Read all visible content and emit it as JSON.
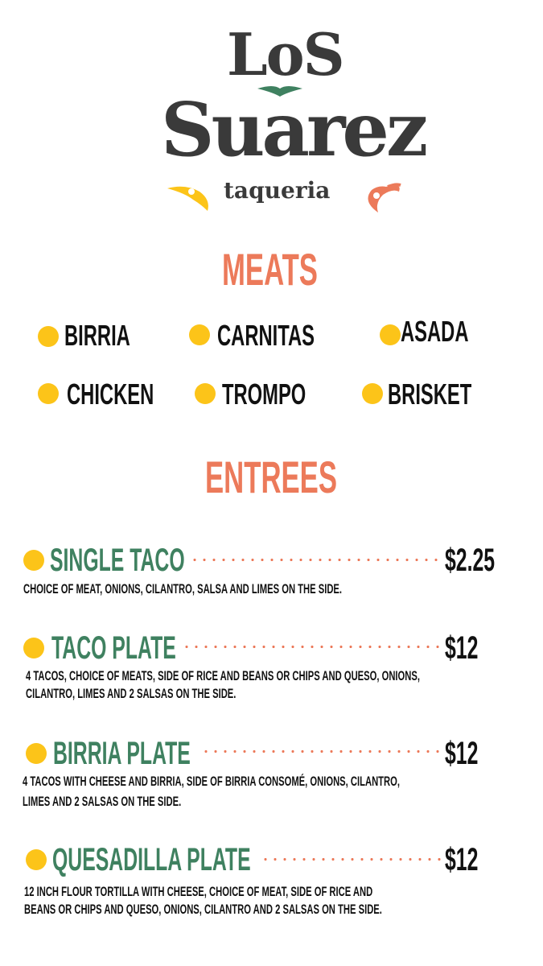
{
  "logo": {
    "line1": "LoS",
    "line2": "Suarez",
    "tagline": "taqueria",
    "colors": {
      "text": "#3a3a3a",
      "green": "#3f8160",
      "yellow": "#fcc419",
      "orange": "#ec7a5a"
    }
  },
  "meats": {
    "heading": "MEATS",
    "items": [
      "BIRRIA",
      "CARNITAS",
      "ASADA",
      "CHICKEN",
      "TROMPO",
      "BRISKET"
    ]
  },
  "entrees": {
    "heading": "ENTREES",
    "items": [
      {
        "name": "SINGLE TACO",
        "price": "$2.25",
        "desc": [
          "CHOICE OF MEAT, ONIONS, CILANTRO, SALSA AND LIMES ON THE SIDE."
        ]
      },
      {
        "name": "TACO PLATE",
        "price": "$12",
        "desc": [
          "4 TACOS, CHOICE OF MEATS, SIDE OF RICE AND BEANS OR CHIPS AND QUESO, ONIONS,",
          "CILANTRO, LIMES AND 2 SALSAS ON THE SIDE."
        ]
      },
      {
        "name": "BIRRIA PLATE",
        "price": "$12",
        "desc": [
          "4 TACOS WITH CHEESE AND BIRRIA, SIDE OF BIRRIA CONSOMÉ, ONIONS, CILANTRO,",
          "LIMES AND 2 SALSAS ON THE SIDE."
        ]
      },
      {
        "name": "QUESADILLA PLATE",
        "price": "$12",
        "desc": [
          " 12 INCH FLOUR  TORTILLA WITH CHEESE, CHOICE OF MEAT, SIDE OF RICE AND",
          "BEANS OR CHIPS AND QUESO, ONIONS, CILANTRO AND 2 SALSAS ON THE SIDE."
        ]
      }
    ]
  }
}
